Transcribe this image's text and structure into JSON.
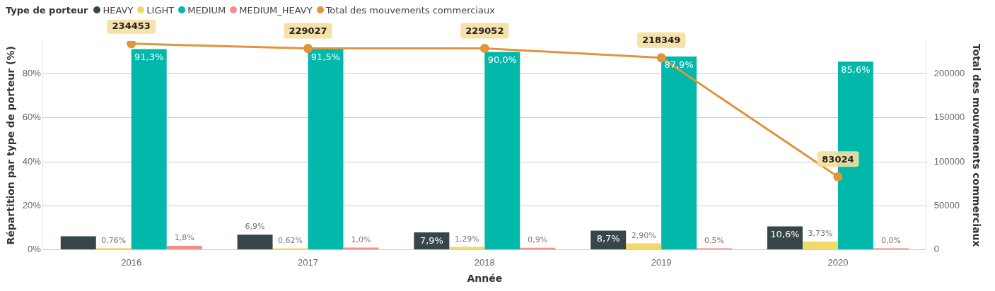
{
  "chart_data": {
    "type": "bar",
    "categories": [
      "2016",
      "2017",
      "2018",
      "2019",
      "2020"
    ],
    "xlabel": "Année",
    "ylabel": "Répartition par type de porteur (%)",
    "y2label": "Total des mouvements commerciaux",
    "legend_title": "Type de porteur",
    "legend": "top left",
    "grid": "y",
    "marker": "circle",
    "ylim": [
      0,
      95
    ],
    "yticks": [
      {
        "value": 0,
        "label": "0%"
      },
      {
        "value": 20,
        "label": "20%"
      },
      {
        "value": 40,
        "label": "40%"
      },
      {
        "value": 60,
        "label": "60%"
      },
      {
        "value": 80,
        "label": "80%"
      }
    ],
    "y2lim": [
      0,
      237500
    ],
    "y2ticks": [
      0,
      50000,
      100000,
      150000,
      200000
    ],
    "series": [
      {
        "name": "HEAVY",
        "color": "#374649",
        "values": [
          6.1,
          6.9,
          7.9,
          8.7,
          10.6
        ],
        "value_labels": [
          null,
          "6,9%",
          "7,9%",
          "8,7%",
          "10,6%"
        ]
      },
      {
        "name": "LIGHT",
        "color": "#f2d96b",
        "values": [
          0.76,
          0.62,
          1.29,
          2.9,
          3.73
        ],
        "value_labels": [
          "0,76%",
          "0,62%",
          "1,29%",
          "2,90%",
          "3,73%"
        ]
      },
      {
        "name": "MEDIUM",
        "color": "#01b8aa",
        "values": [
          91.3,
          91.5,
          90.0,
          87.9,
          85.6
        ],
        "value_labels": [
          "91,3%",
          "91,5%",
          "90,0%",
          "87,9%",
          "85,6%"
        ]
      },
      {
        "name": "MEDIUM_HEAVY",
        "color": "#f28f8a",
        "values": [
          1.8,
          1.0,
          0.9,
          0.5,
          0.0
        ],
        "value_labels": [
          "1,8%",
          "1,0%",
          "0,9%",
          "0,5%",
          "0,0%"
        ]
      },
      {
        "name": "Total des mouvements commerciaux",
        "type": "line",
        "axis": "y2",
        "color": "#e0953c",
        "values": [
          234453,
          229027,
          229052,
          218349,
          83024
        ],
        "value_labels": [
          "234453",
          "229027",
          "229052",
          "218349",
          "83024"
        ]
      }
    ]
  }
}
